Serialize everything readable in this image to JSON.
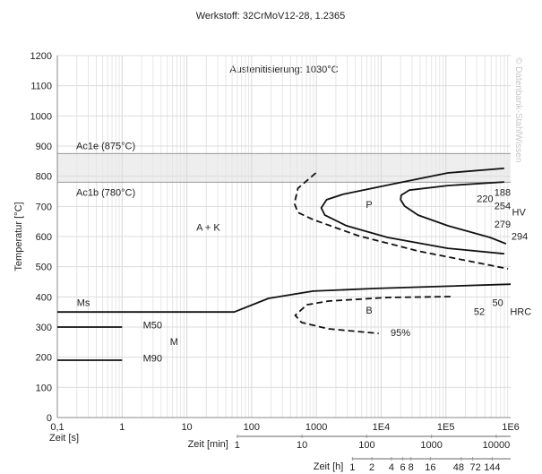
{
  "chart_data": {
    "type": "line",
    "title": "Werkstoff: 32CrMoV12-28, 1.2365",
    "subtitle": "Austenitisierung: 1030°C",
    "watermark": "© Datenbank-StahlWissen",
    "ylabel": "Temperatur [°C]",
    "xlabel": "Zeit [s]",
    "x_scale": "log",
    "xlim": [
      0.1,
      1000000
    ],
    "ylim": [
      0,
      1200
    ],
    "grid": true,
    "x_ticks": [
      {
        "v": 0.1,
        "label": "0,1"
      },
      {
        "v": 1,
        "label": "1"
      },
      {
        "v": 10,
        "label": "10"
      },
      {
        "v": 100,
        "label": "100"
      },
      {
        "v": 1000,
        "label": "1000"
      },
      {
        "v": 10000,
        "label": "1E4"
      },
      {
        "v": 100000,
        "label": "1E5"
      },
      {
        "v": 1000000,
        "label": "1E6"
      }
    ],
    "y_ticks": [
      0,
      100,
      200,
      300,
      400,
      500,
      600,
      700,
      800,
      900,
      1000,
      1100,
      1200
    ],
    "secondary_axes": [
      {
        "label": "Zeit [min]",
        "ticks": [
          {
            "s": 60,
            "label": "1"
          },
          {
            "s": 600,
            "label": "10"
          },
          {
            "s": 6000,
            "label": "100"
          },
          {
            "s": 60000,
            "label": "1000"
          },
          {
            "s": 600000,
            "label": "10000"
          }
        ]
      },
      {
        "label": "Zeit [h]",
        "ticks": [
          {
            "s": 3600,
            "label": "1"
          },
          {
            "s": 7200,
            "label": "2"
          },
          {
            "s": 14400,
            "label": "4"
          },
          {
            "s": 21600,
            "label": "6"
          },
          {
            "s": 28800,
            "label": "8"
          },
          {
            "s": 57600,
            "label": "16"
          },
          {
            "s": 172800,
            "label": "48"
          },
          {
            "s": 259200,
            "label": "72"
          },
          {
            "s": 518400,
            "label": "144"
          }
        ]
      }
    ],
    "bands": [
      {
        "name": "Ac1e (875°C)",
        "value": 875
      },
      {
        "name": "Ac1b (780°C)",
        "value": 780
      }
    ],
    "band_fill": "#eeeeee",
    "series": [
      {
        "style": "solid",
        "points": [
          [
            0.1,
            350
          ],
          [
            54,
            350
          ],
          [
            182,
            395
          ],
          [
            890,
            419
          ],
          [
            8300,
            428
          ],
          [
            1000000,
            442
          ]
        ]
      },
      {
        "style": "solid",
        "points": [
          [
            0.1,
            300
          ],
          [
            1,
            300
          ]
        ]
      },
      {
        "style": "solid",
        "points": [
          [
            0.1,
            190
          ],
          [
            1,
            190
          ]
        ]
      },
      {
        "style": "solid",
        "points": [
          [
            796000,
            826
          ],
          [
            107000,
            811
          ],
          [
            15800,
            775
          ],
          [
            2560,
            740
          ],
          [
            1440,
            722
          ],
          [
            1190,
            695
          ],
          [
            1350,
            671
          ],
          [
            2900,
            636
          ],
          [
            12600,
            597
          ],
          [
            107000,
            561
          ],
          [
            796000,
            543
          ]
        ]
      },
      {
        "style": "solid",
        "points": [
          [
            796000,
            781
          ],
          [
            107000,
            769
          ],
          [
            27200,
            754
          ],
          [
            20400,
            737
          ],
          [
            20000,
            722
          ],
          [
            23000,
            701
          ],
          [
            37400,
            671
          ],
          [
            107000,
            636
          ],
          [
            480000,
            597
          ],
          [
            850000,
            576
          ]
        ]
      },
      {
        "style": "dashed",
        "points": [
          [
            982,
            811
          ],
          [
            519,
            760
          ],
          [
            457,
            710
          ],
          [
            519,
            680
          ],
          [
            891,
            656
          ],
          [
            4400,
            603
          ],
          [
            37400,
            552
          ],
          [
            910000,
            493
          ]
        ]
      },
      {
        "style": "dashed",
        "points": [
          [
            118000,
            401
          ],
          [
            12600,
            398
          ],
          [
            1540,
            386
          ],
          [
            714,
            374
          ],
          [
            471,
            339
          ],
          [
            590,
            315
          ],
          [
            1540,
            294
          ],
          [
            9160,
            279
          ]
        ]
      }
    ],
    "annotations": [
      {
        "text": "Ms",
        "x": 0.2,
        "y": 370
      },
      {
        "text": "M50",
        "x": 2.1,
        "y": 295
      },
      {
        "text": "M90",
        "x": 2.1,
        "y": 185
      },
      {
        "text": "M",
        "x": 5.5,
        "y": 240
      },
      {
        "text": "A + K",
        "x": 14,
        "y": 620
      },
      {
        "text": "P",
        "x": 5800,
        "y": 695
      },
      {
        "text": "B",
        "x": 5800,
        "y": 345
      },
      {
        "text": "95%",
        "x": 14000,
        "y": 270
      },
      {
        "text": "188",
        "x": 560000,
        "y": 735
      },
      {
        "text": "220",
        "x": 300000,
        "y": 715
      },
      {
        "text": "254",
        "x": 560000,
        "y": 690
      },
      {
        "text": "HV",
        "x": 1050000,
        "y": 670
      },
      {
        "text": "279",
        "x": 560000,
        "y": 630
      },
      {
        "text": "294",
        "x": 1030000,
        "y": 590
      },
      {
        "text": "50",
        "x": 520000,
        "y": 370
      },
      {
        "text": "52",
        "x": 270000,
        "y": 340
      },
      {
        "text": "HRC",
        "x": 980000,
        "y": 340
      }
    ]
  }
}
